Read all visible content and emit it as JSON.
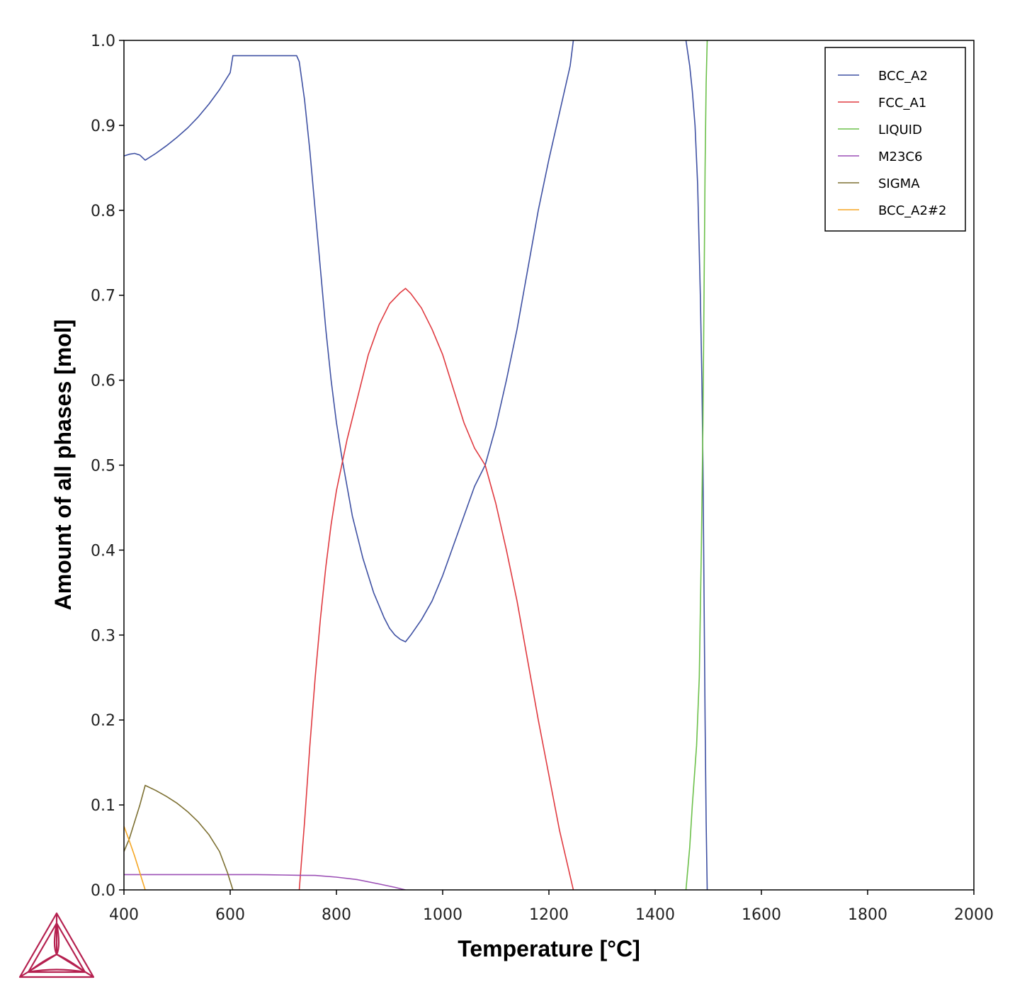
{
  "chart_data": {
    "type": "line",
    "xlabel": "Temperature [°C]",
    "ylabel": "Amount of all phases [mol]",
    "xlim": [
      400,
      2000
    ],
    "ylim": [
      0,
      1.0
    ],
    "xticks": [
      400,
      600,
      800,
      1000,
      1200,
      1400,
      1600,
      1800,
      2000
    ],
    "yticks": [
      0.0,
      0.1,
      0.2,
      0.3,
      0.4,
      0.5,
      0.6,
      0.7,
      0.8,
      0.9,
      1.0
    ],
    "ytick_labels": [
      "0.0",
      "0.1",
      "0.2",
      "0.3",
      "0.4",
      "0.5",
      "0.6",
      "0.7",
      "0.8",
      "0.9",
      "1.0"
    ],
    "grid": false,
    "legend_position": "top-right",
    "series": [
      {
        "name": "BCC_A2",
        "color": "#3f51a3",
        "points": [
          [
            400,
            0.864
          ],
          [
            410,
            0.866
          ],
          [
            420,
            0.867
          ],
          [
            430,
            0.865
          ],
          [
            440,
            0.859
          ],
          [
            460,
            0.867
          ],
          [
            480,
            0.876
          ],
          [
            500,
            0.886
          ],
          [
            520,
            0.897
          ],
          [
            540,
            0.91
          ],
          [
            560,
            0.925
          ],
          [
            580,
            0.942
          ],
          [
            600,
            0.962
          ],
          [
            605,
            0.982
          ],
          [
            620,
            0.982
          ],
          [
            660,
            0.982
          ],
          [
            700,
            0.982
          ],
          [
            725,
            0.982
          ],
          [
            730,
            0.975
          ],
          [
            740,
            0.93
          ],
          [
            750,
            0.87
          ],
          [
            760,
            0.8
          ],
          [
            770,
            0.73
          ],
          [
            780,
            0.66
          ],
          [
            790,
            0.6
          ],
          [
            800,
            0.55
          ],
          [
            810,
            0.51
          ],
          [
            820,
            0.475
          ],
          [
            830,
            0.44
          ],
          [
            840,
            0.415
          ],
          [
            850,
            0.39
          ],
          [
            860,
            0.37
          ],
          [
            870,
            0.35
          ],
          [
            880,
            0.335
          ],
          [
            890,
            0.32
          ],
          [
            900,
            0.308
          ],
          [
            910,
            0.3
          ],
          [
            920,
            0.295
          ],
          [
            930,
            0.292
          ],
          [
            940,
            0.3
          ],
          [
            960,
            0.318
          ],
          [
            980,
            0.34
          ],
          [
            1000,
            0.37
          ],
          [
            1020,
            0.405
          ],
          [
            1040,
            0.44
          ],
          [
            1060,
            0.475
          ],
          [
            1080,
            0.5
          ],
          [
            1100,
            0.545
          ],
          [
            1120,
            0.6
          ],
          [
            1140,
            0.66
          ],
          [
            1160,
            0.73
          ],
          [
            1180,
            0.8
          ],
          [
            1200,
            0.86
          ],
          [
            1220,
            0.915
          ],
          [
            1240,
            0.97
          ],
          [
            1246,
            1.0
          ]
        ]
      },
      {
        "name": "BCC_A2",
        "color": "#3f51a3",
        "points": [
          [
            1458,
            1.0
          ],
          [
            1465,
            0.97
          ],
          [
            1470,
            0.94
          ],
          [
            1475,
            0.9
          ],
          [
            1480,
            0.83
          ],
          [
            1485,
            0.7
          ],
          [
            1488,
            0.6
          ],
          [
            1490,
            0.5
          ],
          [
            1492,
            0.35
          ],
          [
            1494,
            0.2
          ],
          [
            1496,
            0.08
          ],
          [
            1498,
            0.0
          ]
        ]
      },
      {
        "name": "FCC_A1",
        "color": "#e03a40",
        "points": [
          [
            730,
            0.0
          ],
          [
            740,
            0.08
          ],
          [
            750,
            0.17
          ],
          [
            760,
            0.25
          ],
          [
            770,
            0.32
          ],
          [
            780,
            0.38
          ],
          [
            790,
            0.43
          ],
          [
            800,
            0.47
          ],
          [
            810,
            0.5
          ],
          [
            820,
            0.53
          ],
          [
            840,
            0.58
          ],
          [
            860,
            0.63
          ],
          [
            880,
            0.665
          ],
          [
            900,
            0.69
          ],
          [
            920,
            0.703
          ],
          [
            930,
            0.708
          ],
          [
            940,
            0.702
          ],
          [
            960,
            0.685
          ],
          [
            980,
            0.66
          ],
          [
            1000,
            0.63
          ],
          [
            1020,
            0.59
          ],
          [
            1040,
            0.55
          ],
          [
            1060,
            0.52
          ],
          [
            1080,
            0.5
          ],
          [
            1100,
            0.455
          ],
          [
            1120,
            0.4
          ],
          [
            1140,
            0.34
          ],
          [
            1160,
            0.27
          ],
          [
            1180,
            0.2
          ],
          [
            1200,
            0.135
          ],
          [
            1220,
            0.07
          ],
          [
            1246,
            0.0
          ]
        ]
      },
      {
        "name": "LIQUID",
        "color": "#6cc04a",
        "points": [
          [
            1458,
            0.0
          ],
          [
            1465,
            0.05
          ],
          [
            1470,
            0.1
          ],
          [
            1478,
            0.17
          ],
          [
            1483,
            0.25
          ],
          [
            1487,
            0.4
          ],
          [
            1490,
            0.55
          ],
          [
            1492,
            0.7
          ],
          [
            1494,
            0.85
          ],
          [
            1496,
            0.95
          ],
          [
            1498,
            1.0
          ]
        ]
      },
      {
        "name": "M23C6",
        "color": "#9b4fb5",
        "points": [
          [
            400,
            0.018
          ],
          [
            450,
            0.018
          ],
          [
            500,
            0.018
          ],
          [
            550,
            0.018
          ],
          [
            600,
            0.018
          ],
          [
            650,
            0.018
          ],
          [
            700,
            0.0175
          ],
          [
            730,
            0.0172
          ],
          [
            760,
            0.017
          ],
          [
            800,
            0.015
          ],
          [
            840,
            0.012
          ],
          [
            880,
            0.007
          ],
          [
            910,
            0.003
          ],
          [
            930,
            0.0
          ]
        ]
      },
      {
        "name": "SIGMA",
        "color": "#7d7032",
        "points": [
          [
            400,
            0.045
          ],
          [
            410,
            0.06
          ],
          [
            420,
            0.08
          ],
          [
            430,
            0.1
          ],
          [
            440,
            0.123
          ],
          [
            460,
            0.117
          ],
          [
            480,
            0.11
          ],
          [
            500,
            0.102
          ],
          [
            520,
            0.092
          ],
          [
            540,
            0.08
          ],
          [
            560,
            0.065
          ],
          [
            580,
            0.045
          ],
          [
            595,
            0.02
          ],
          [
            605,
            0.0
          ]
        ]
      },
      {
        "name": "BCC_A2#2",
        "color": "#f5a623",
        "points": [
          [
            400,
            0.075
          ],
          [
            410,
            0.058
          ],
          [
            420,
            0.04
          ],
          [
            430,
            0.02
          ],
          [
            440,
            0.0
          ]
        ]
      }
    ],
    "legend": [
      {
        "name": "BCC_A2",
        "color": "#3f51a3"
      },
      {
        "name": "FCC_A1",
        "color": "#e03a40"
      },
      {
        "name": "LIQUID",
        "color": "#6cc04a"
      },
      {
        "name": "M23C6",
        "color": "#9b4fb5"
      },
      {
        "name": "SIGMA",
        "color": "#7d7032"
      },
      {
        "name": "BCC_A2#2",
        "color": "#f5a623"
      }
    ]
  },
  "logo": {
    "icon": "thermo-calc-logo-icon",
    "color": "#b5204f"
  }
}
